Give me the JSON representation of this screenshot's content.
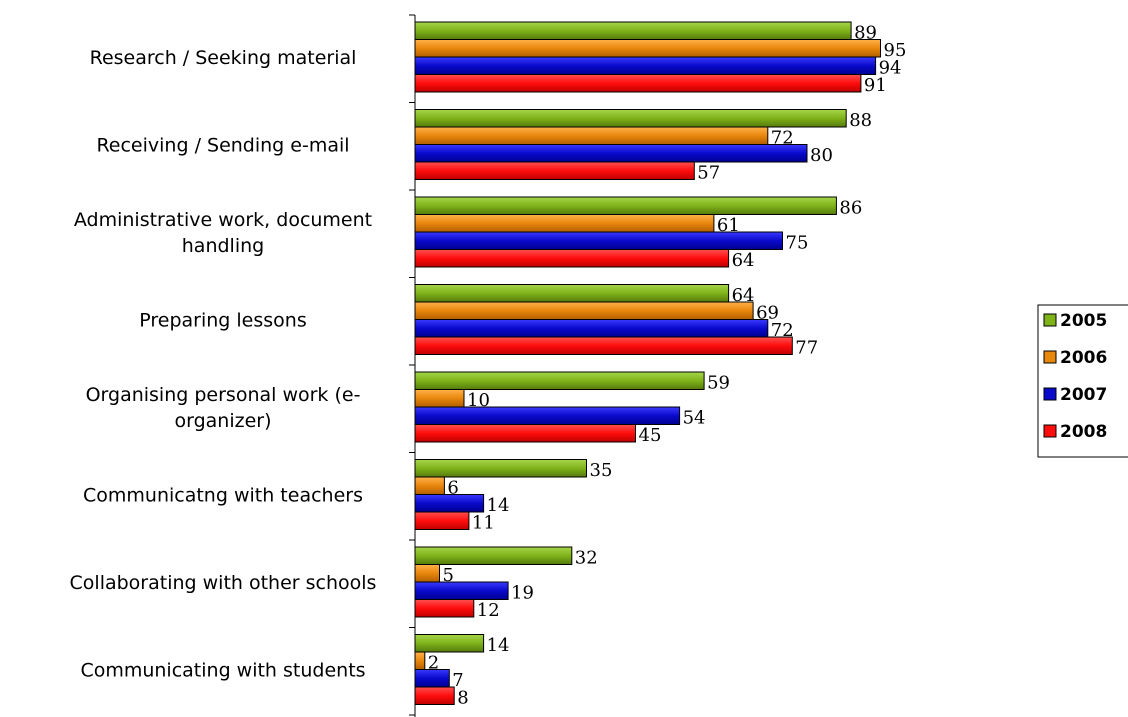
{
  "chart_data": {
    "type": "bar",
    "orientation": "horizontal",
    "categories": [
      [
        "Research / Seeking material"
      ],
      [
        "Receiving / Sending e-mail"
      ],
      [
        "Administrative work, document",
        "handling"
      ],
      [
        "Preparing lessons"
      ],
      [
        "Organising personal work (e-",
        "organizer)"
      ],
      [
        "Communicatng with teachers"
      ],
      [
        "Collaborating with other schools"
      ],
      [
        "Communicating with students"
      ]
    ],
    "series": [
      {
        "name": "2005",
        "color": "#7fb31a",
        "values": [
          89,
          88,
          86,
          64,
          59,
          35,
          32,
          14
        ]
      },
      {
        "name": "2006",
        "color": "#e8870d",
        "values": [
          95,
          72,
          61,
          69,
          10,
          6,
          5,
          2
        ]
      },
      {
        "name": "2007",
        "color": "#0a0acc",
        "values": [
          94,
          80,
          75,
          72,
          54,
          14,
          19,
          7
        ]
      },
      {
        "name": "2008",
        "color": "#ff0d0d",
        "values": [
          91,
          57,
          64,
          77,
          45,
          11,
          12,
          8
        ]
      }
    ],
    "xlim": [
      0,
      100
    ],
    "grid": false,
    "legend_position": "right",
    "data_labels": true
  }
}
